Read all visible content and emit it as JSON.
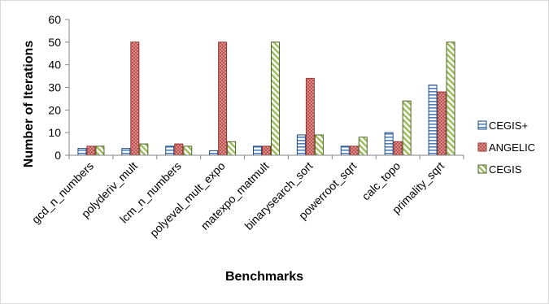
{
  "chart_data": {
    "type": "bar",
    "title": "",
    "xlabel": "Benchmarks",
    "ylabel": "Number of Iterations",
    "ylim": [
      0,
      60
    ],
    "yticks": [
      0,
      10,
      20,
      30,
      40,
      50,
      60
    ],
    "grid": false,
    "legend_position": "right",
    "categories": [
      "gcd_n_numbers",
      "polyderiv_mult",
      "lcm_n_numbers",
      "polyeval_mult_expo",
      "matexpo_matmult",
      "binarysearch_sort",
      "powerroot_sqrt",
      "calc_topo",
      "primality_sqrt"
    ],
    "series": [
      {
        "name": "CEGIS+",
        "values": [
          3,
          3,
          4,
          2,
          4,
          9,
          4,
          10,
          31
        ],
        "color": "#4f81bd",
        "pattern": "horizontal-stripes"
      },
      {
        "name": "ANGELIC",
        "values": [
          4,
          50,
          5,
          50,
          4,
          34,
          4,
          6,
          28
        ],
        "color": "#c0504d",
        "pattern": "dots"
      },
      {
        "name": "CEGIS",
        "values": [
          4,
          5,
          4,
          6,
          50,
          9,
          8,
          24,
          50
        ],
        "color": "#9bbb59",
        "pattern": "diagonal-stripes"
      }
    ]
  }
}
